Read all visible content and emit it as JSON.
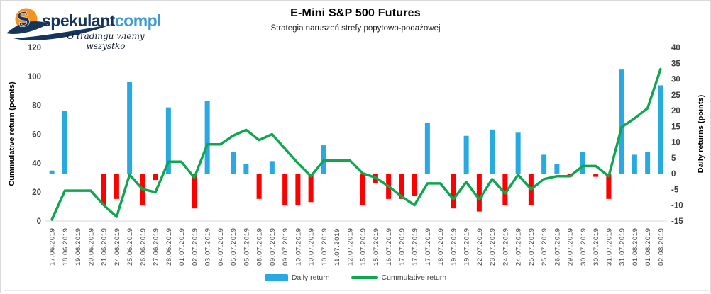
{
  "logo": {
    "brand_part1": "spekulant",
    "brand_part2": "compl",
    "tagline": "O tradingu wiemy wszystko",
    "colors": {
      "navy": "#16355c",
      "light_blue": "#3d9bd5",
      "orange": "#f6921e"
    }
  },
  "title": "E-Mini S&P 500 Futures",
  "subtitle": "Strategia naruszeń strefy popytowo-podażowej",
  "axes": {
    "left_label": "Cummulative return (points)",
    "right_label": "Daily returns (points)"
  },
  "legend": {
    "daily_label": "Daily return",
    "cummulative_label": "Cummulative return"
  },
  "chart_data": {
    "type": "bar",
    "subtype": "combo dual-axis: daily return bars (right axis) + cummulative return line (left axis)",
    "title": "E-Mini S&P 500 Futures",
    "subtitle": "Strategia naruszeń strefy popytowo-podażowej",
    "grid": "off",
    "legend_position": "bottom",
    "categories": [
      "17.06.2019",
      "18.06.2019",
      "19.06.2019",
      "20.06.2019",
      "21.06.2019",
      "24.06.2019",
      "25.06.2019",
      "26.06.2019",
      "27.06.2019",
      "28.06.2019",
      "01.07.2019",
      "02.07.2019",
      "03.07.2019",
      "04.07.2019",
      "05.07.2019",
      "05.07.2019",
      "08.07.2019",
      "09.07.2019",
      "09.07.2019",
      "10.07.2019",
      "10.07.2019",
      "10.07.2019",
      "11.07.2019",
      "12.07.2019",
      "15.07.2019",
      "15.07.2019",
      "16.07.2019",
      "17.07.2019",
      "17.07.2019",
      "17.07.2019",
      "18.07.2019",
      "19.07.2019",
      "19.07.2019",
      "22.07.2019",
      "23.07.2019",
      "24.07.2019",
      "24.07.2019",
      "25.07.2019",
      "25.07.2019",
      "26.07.2019",
      "29.07.2019",
      "30.07.2019",
      "30.07.2019",
      "31.07.2019",
      "31.07.2019",
      "01.08.2019",
      "01.08.2019",
      "02.08.2019"
    ],
    "series": [
      {
        "name": "Daily return",
        "type": "bar",
        "axis": "right",
        "color": "#29a9e1",
        "negative_color": "#ff0000",
        "values": [
          1,
          20,
          0,
          0,
          -10,
          -8,
          29,
          -10,
          -2,
          21,
          0,
          -11,
          23,
          0,
          7,
          3,
          -8,
          4,
          -10,
          -10,
          -9,
          9,
          0,
          0,
          -10,
          -3,
          -8,
          -8,
          -7,
          16,
          0,
          -11,
          12,
          -12,
          14,
          -10,
          13,
          -10,
          6,
          3,
          -1,
          7,
          -1,
          -8,
          33,
          6,
          7,
          28
        ]
      },
      {
        "name": "Cummulative return",
        "type": "line",
        "axis": "left",
        "color": "#0fa650",
        "values": [
          1,
          21,
          21,
          21,
          11,
          3,
          32,
          22,
          20,
          41,
          41,
          30,
          53,
          53,
          59,
          63,
          56,
          60,
          50,
          40,
          31,
          42,
          42,
          42,
          33,
          30,
          24,
          17,
          11,
          26,
          26,
          15,
          27,
          15,
          29,
          19,
          32,
          22,
          29,
          31,
          31,
          38,
          38,
          31,
          65,
          71,
          78,
          105
        ]
      }
    ],
    "left_axis": {
      "label": "Cummulative return (points)",
      "min": 0,
      "max": 120,
      "ticks": [
        0,
        20,
        40,
        60,
        80,
        100,
        120
      ]
    },
    "right_axis": {
      "label": "Daily returns (points)",
      "min": -15,
      "max": 40,
      "ticks": [
        40,
        35,
        30,
        25,
        20,
        15,
        10,
        5,
        0,
        -5,
        -10,
        -15
      ]
    },
    "tick_color": "#404040",
    "axis_line_color": "#d9d9d9"
  }
}
